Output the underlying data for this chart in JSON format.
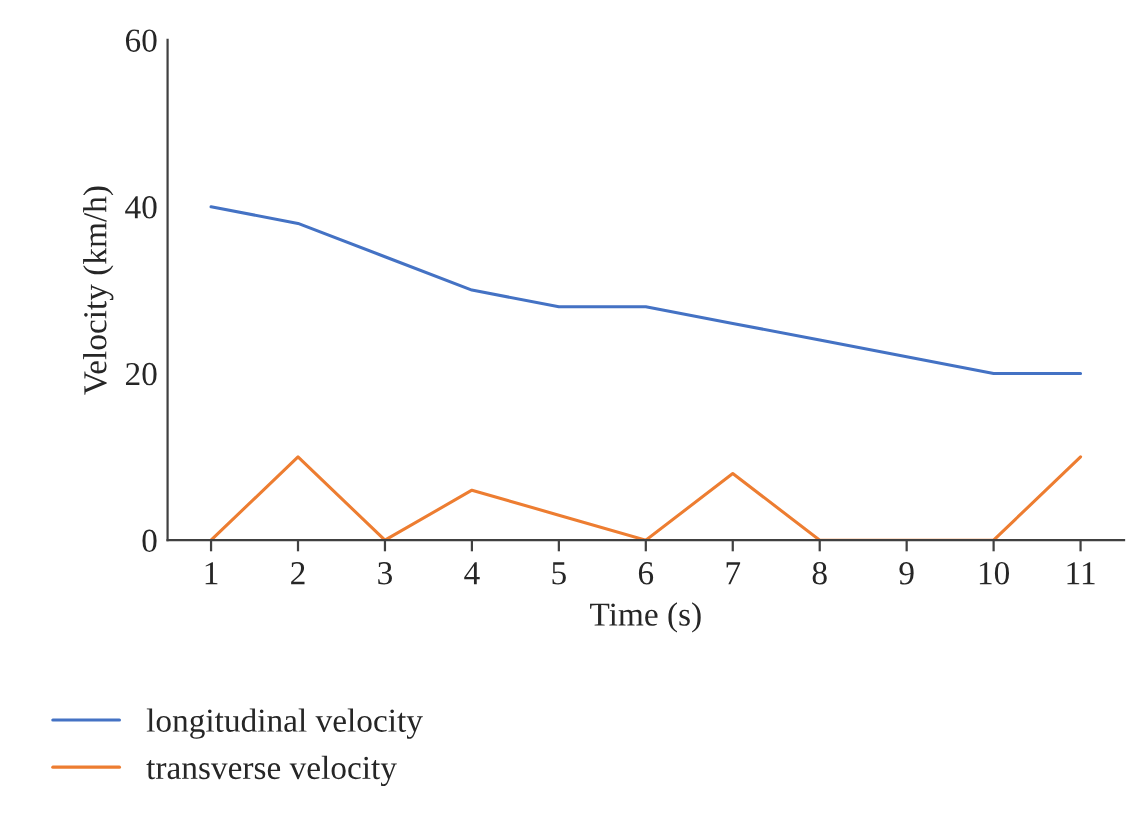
{
  "chart_data": {
    "type": "line",
    "xlabel": "Time (s)",
    "ylabel": "Velocity (km/h)",
    "categories": [
      "1",
      "2",
      "3",
      "4",
      "5",
      "6",
      "7",
      "8",
      "9",
      "10",
      "11"
    ],
    "series": [
      {
        "name": "longitudinal velocity",
        "color": "#4472c4",
        "values": [
          40,
          38,
          34,
          30,
          28,
          28,
          26,
          24,
          22,
          20,
          20
        ]
      },
      {
        "name": "transverse velocity",
        "color": "#ed7d31",
        "values": [
          0,
          10,
          0,
          6,
          3,
          0,
          8,
          0,
          0,
          0,
          10
        ]
      }
    ],
    "ylim": [
      0,
      60
    ],
    "yticks": [
      0,
      20,
      40,
      60
    ],
    "grid": false,
    "legend": "bottom",
    "marker": "none",
    "line_style": "solid"
  }
}
